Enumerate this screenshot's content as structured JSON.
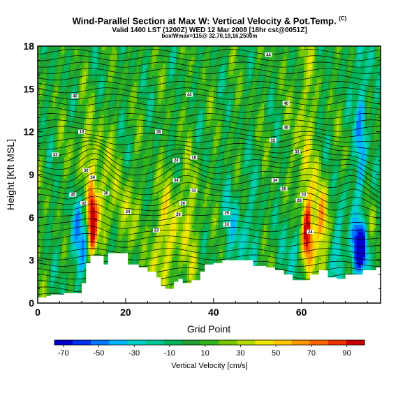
{
  "chart_data": {
    "type": "heatmap",
    "title": "Wind-Parallel Section at Max W: Vertical Velocity & Pot.Temp.",
    "title_unit": "(C)",
    "subtitle_line1": "Valid 1400 LST (1200Z) WED 12 Mar 2008 [18hr cst@0051Z]",
    "subtitle_line2": "box/Wmax=115@ 32,70,19,16,2500m",
    "xlabel": "Grid Point",
    "ylabel": "Height [Kft MSL]",
    "xlim": [
      0,
      78
    ],
    "ylim": [
      0,
      18
    ],
    "xticks": [
      "0",
      "20",
      "40",
      "60"
    ],
    "xtick_values": [
      0,
      20,
      40,
      60
    ],
    "yticks": [
      "0",
      "3",
      "6",
      "9",
      "12",
      "15",
      "18"
    ],
    "ytick_values": [
      0,
      3,
      6,
      9,
      12,
      15,
      18
    ],
    "colorbar": {
      "label": "Vertical Velocity [cm/s]",
      "min": -75,
      "max": 100,
      "tick_labels": [
        "-70",
        "-50",
        "-30",
        "-10",
        "10",
        "30",
        "50",
        "70",
        "90"
      ],
      "tick_values": [
        -70,
        -50,
        -30,
        -10,
        10,
        30,
        50,
        70,
        90
      ],
      "colors": [
        "#0000c8",
        "#0032f0",
        "#0078ff",
        "#00b4ff",
        "#00d2c8",
        "#00c896",
        "#00b45a",
        "#1ea032",
        "#32b41e",
        "#78c800",
        "#b4dc00",
        "#f0e600",
        "#ffc800",
        "#ff9600",
        "#ff6400",
        "#f03200",
        "#c80000"
      ]
    },
    "terrain": [
      [
        0,
        0.4
      ],
      [
        2,
        0.5
      ],
      [
        3,
        0.6
      ],
      [
        6,
        0.7
      ],
      [
        9,
        0.7
      ],
      [
        10,
        1.4
      ],
      [
        11,
        2.8
      ],
      [
        12,
        3.3
      ],
      [
        14,
        3.3
      ],
      [
        15,
        2.7
      ],
      [
        16,
        3.5
      ],
      [
        20,
        3.5
      ],
      [
        20.5,
        2.7
      ],
      [
        22,
        2.7
      ],
      [
        23,
        2.5
      ],
      [
        25,
        2.2
      ],
      [
        27,
        1.8
      ],
      [
        28,
        1.2
      ],
      [
        29,
        1.0
      ],
      [
        31,
        1.5
      ],
      [
        32,
        1.7
      ],
      [
        33,
        1.4
      ],
      [
        35,
        1.6
      ],
      [
        37,
        2.2
      ],
      [
        38,
        2.7
      ],
      [
        40,
        2.8
      ],
      [
        42,
        3.0
      ],
      [
        48,
        3.0
      ],
      [
        49,
        2.6
      ],
      [
        51,
        2.6
      ],
      [
        52,
        2.5
      ],
      [
        54,
        2.3
      ],
      [
        56,
        2.0
      ],
      [
        58,
        1.6
      ],
      [
        61,
        1.6
      ],
      [
        62,
        2.0
      ],
      [
        64,
        2.3
      ],
      [
        66,
        1.8
      ],
      [
        68,
        1.7
      ],
      [
        70,
        2.0
      ],
      [
        72,
        2.0
      ],
      [
        74,
        2.3
      ],
      [
        77,
        2.5
      ],
      [
        78,
        2.7
      ]
    ],
    "wave_crests": [
      13,
      33,
      62,
      72
    ],
    "isotherm_labels": [
      {
        "x": 52.5,
        "y": 17.4,
        "text": "44"
      },
      {
        "x": 8.5,
        "y": 14.5,
        "text": "40"
      },
      {
        "x": 34.5,
        "y": 14.6,
        "text": "44"
      },
      {
        "x": 56.5,
        "y": 14.0,
        "text": "40"
      },
      {
        "x": 10,
        "y": 12.0,
        "text": "10"
      },
      {
        "x": 27.5,
        "y": 12.0,
        "text": "36"
      },
      {
        "x": 56.5,
        "y": 12.3,
        "text": "46"
      },
      {
        "x": 53.5,
        "y": 11.4,
        "text": "32"
      },
      {
        "x": 4,
        "y": 10.4,
        "text": "33"
      },
      {
        "x": 31.5,
        "y": 10.0,
        "text": "24"
      },
      {
        "x": 35.5,
        "y": 10.2,
        "text": "18"
      },
      {
        "x": 59,
        "y": 10.6,
        "text": "33"
      },
      {
        "x": 11,
        "y": 9.3,
        "text": "30"
      },
      {
        "x": 12.5,
        "y": 8.8,
        "text": "34"
      },
      {
        "x": 31.5,
        "y": 8.6,
        "text": "34"
      },
      {
        "x": 54,
        "y": 8.6,
        "text": "34"
      },
      {
        "x": 56,
        "y": 8.0,
        "text": "26"
      },
      {
        "x": 8,
        "y": 7.6,
        "text": "30"
      },
      {
        "x": 15.5,
        "y": 7.7,
        "text": "36"
      },
      {
        "x": 35.5,
        "y": 7.9,
        "text": "32"
      },
      {
        "x": 60.5,
        "y": 7.6,
        "text": "33"
      },
      {
        "x": 10.5,
        "y": 7.0,
        "text": "32"
      },
      {
        "x": 33,
        "y": 7.0,
        "text": "30"
      },
      {
        "x": 59.5,
        "y": 7.2,
        "text": "26"
      },
      {
        "x": 20.5,
        "y": 6.4,
        "text": "24"
      },
      {
        "x": 32,
        "y": 6.2,
        "text": "26"
      },
      {
        "x": 43,
        "y": 6.3,
        "text": "25"
      },
      {
        "x": 43,
        "y": 5.5,
        "text": "24"
      },
      {
        "x": 27,
        "y": 5.1,
        "text": "23"
      },
      {
        "x": 62,
        "y": 5.0,
        "text": "24"
      }
    ]
  }
}
